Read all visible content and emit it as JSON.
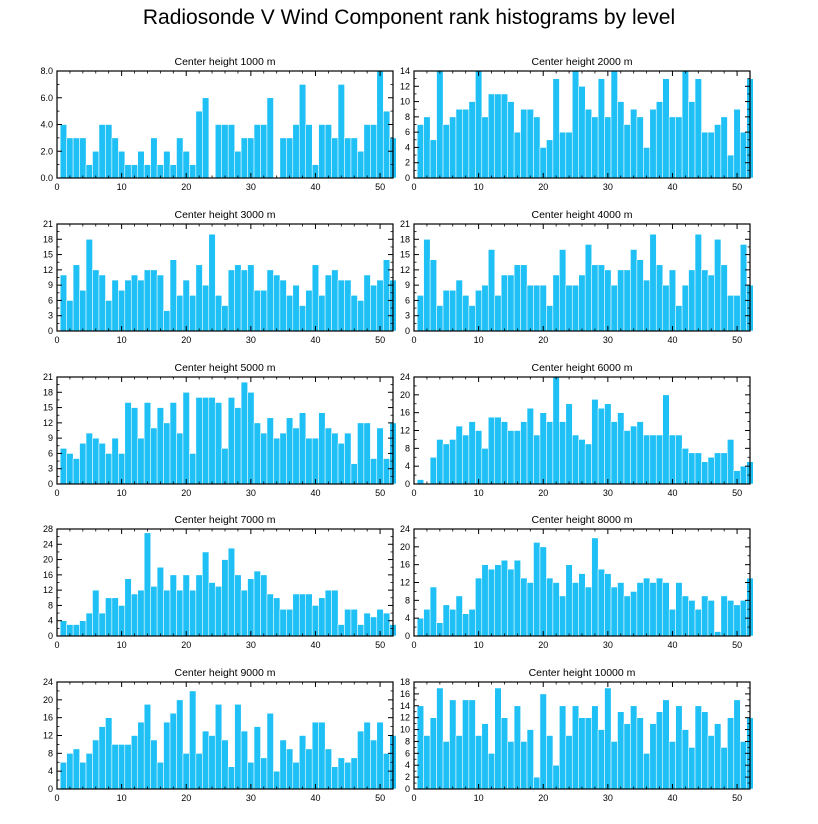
{
  "title": "Radiosonde V Wind Component rank histograms by level",
  "colors": {
    "bar": "#1ec0f5",
    "bar_stroke": "#ffffff",
    "axis": "#000000"
  },
  "chart_data": [
    {
      "type": "bar",
      "title": "Center height 1000 m",
      "xlim": [
        0,
        52
      ],
      "ylim": [
        0,
        8
      ],
      "xticks": [
        0,
        10,
        20,
        30,
        40,
        50
      ],
      "xtick_labels": [
        "0",
        "10",
        "20",
        "30",
        "40",
        "50"
      ],
      "yticks": [
        0,
        2,
        4,
        6,
        8
      ],
      "ytick_labels": [
        "0.0",
        "2.0",
        "4.0",
        "6.0",
        "8.0"
      ],
      "values": [
        4,
        3,
        3,
        3,
        1,
        2,
        4,
        4,
        3,
        2,
        1,
        1,
        2,
        1,
        3,
        1,
        2,
        1,
        3,
        2,
        1,
        5,
        6,
        0,
        4,
        4,
        4,
        2,
        3,
        3,
        4,
        4,
        6,
        0,
        3,
        3,
        4,
        7,
        4,
        1,
        4,
        4,
        3,
        7,
        3,
        3,
        2,
        4,
        4,
        8,
        5,
        3
      ]
    },
    {
      "type": "bar",
      "title": "Center height 2000 m",
      "xlim": [
        0,
        52
      ],
      "ylim": [
        0,
        14
      ],
      "xticks": [
        0,
        10,
        20,
        30,
        40,
        50
      ],
      "xtick_labels": [
        "0",
        "10",
        "20",
        "30",
        "40",
        "50"
      ],
      "yticks": [
        0,
        2,
        4,
        6,
        8,
        10,
        12,
        14
      ],
      "ytick_labels": [
        "0",
        "2",
        "4",
        "6",
        "8",
        "10",
        "12",
        "14"
      ],
      "values": [
        7,
        8,
        5,
        14,
        7,
        8,
        9,
        9,
        10,
        14,
        8,
        11,
        11,
        11,
        10,
        6,
        9,
        9,
        8,
        4,
        5,
        13,
        6,
        6,
        14,
        12,
        9,
        8,
        13,
        8,
        14,
        10,
        7,
        9,
        8,
        4,
        9,
        10,
        13,
        8,
        8,
        14,
        10,
        13,
        6,
        6,
        7,
        8,
        3,
        9,
        6,
        13
      ]
    },
    {
      "type": "bar",
      "title": "Center height 3000 m",
      "xlim": [
        0,
        52
      ],
      "ylim": [
        0,
        21
      ],
      "xticks": [
        0,
        10,
        20,
        30,
        40,
        50
      ],
      "xtick_labels": [
        "0",
        "10",
        "20",
        "30",
        "40",
        "50"
      ],
      "yticks": [
        0,
        3,
        6,
        9,
        12,
        15,
        18,
        21
      ],
      "ytick_labels": [
        "0",
        "3",
        "6",
        "9",
        "12",
        "15",
        "18",
        "21"
      ],
      "values": [
        11,
        6,
        13,
        8,
        18,
        12,
        11,
        6,
        10,
        8,
        10,
        11,
        10,
        12,
        12,
        11,
        4,
        14,
        7,
        10,
        7,
        13,
        9,
        19,
        7,
        5,
        12,
        13,
        12,
        13,
        8,
        8,
        12,
        11,
        10,
        7,
        9,
        5,
        8,
        13,
        7,
        11,
        12,
        10,
        10,
        7,
        6,
        11,
        9,
        10,
        14,
        10
      ]
    },
    {
      "type": "bar",
      "title": "Center height 4000 m",
      "xlim": [
        0,
        52
      ],
      "ylim": [
        0,
        21
      ],
      "xticks": [
        0,
        10,
        20,
        30,
        40,
        50
      ],
      "xtick_labels": [
        "0",
        "10",
        "20",
        "30",
        "40",
        "50"
      ],
      "yticks": [
        0,
        3,
        6,
        9,
        12,
        15,
        18,
        21
      ],
      "ytick_labels": [
        "0",
        "3",
        "6",
        "9",
        "12",
        "15",
        "18",
        "21"
      ],
      "values": [
        7,
        18,
        14,
        5,
        8,
        8,
        10,
        7,
        5,
        8,
        9,
        16,
        7,
        11,
        11,
        13,
        13,
        9,
        9,
        9,
        5,
        11,
        16,
        9,
        9,
        11,
        17,
        13,
        13,
        12,
        9,
        12,
        12,
        16,
        14,
        10,
        19,
        13,
        9,
        12,
        5,
        9,
        12,
        19,
        12,
        11,
        18,
        13,
        7,
        7,
        17,
        9
      ]
    },
    {
      "type": "bar",
      "title": "Center height 5000 m",
      "xlim": [
        0,
        52
      ],
      "ylim": [
        0,
        21
      ],
      "xticks": [
        0,
        10,
        20,
        30,
        40,
        50
      ],
      "xtick_labels": [
        "0",
        "10",
        "20",
        "30",
        "40",
        "50"
      ],
      "yticks": [
        0,
        3,
        6,
        9,
        12,
        15,
        18,
        21
      ],
      "ytick_labels": [
        "0",
        "3",
        "6",
        "9",
        "12",
        "15",
        "18",
        "21"
      ],
      "values": [
        7,
        6,
        5,
        8,
        10,
        9,
        8,
        6,
        9,
        6,
        16,
        15,
        9,
        16,
        11,
        15,
        12,
        16,
        10,
        18,
        6,
        17,
        17,
        17,
        16,
        7,
        17,
        15,
        20,
        18,
        12,
        10,
        13,
        9,
        10,
        13,
        11,
        14,
        9,
        9,
        14,
        11,
        10,
        8,
        10,
        4,
        12,
        12,
        5,
        11,
        5,
        12
      ]
    },
    {
      "type": "bar",
      "title": "Center height 6000 m",
      "xlim": [
        0,
        52
      ],
      "ylim": [
        0,
        24
      ],
      "xticks": [
        0,
        10,
        20,
        30,
        40,
        50
      ],
      "xtick_labels": [
        "0",
        "10",
        "20",
        "30",
        "40",
        "50"
      ],
      "yticks": [
        0,
        4,
        8,
        12,
        16,
        20,
        24
      ],
      "ytick_labels": [
        "0",
        "4",
        "8",
        "12",
        "16",
        "20",
        "24"
      ],
      "values": [
        1,
        0,
        6,
        10,
        9,
        10,
        13,
        11,
        14,
        12,
        8,
        15,
        15,
        14,
        12,
        12,
        14,
        17,
        11,
        16,
        14,
        24,
        14,
        18,
        11,
        10,
        9,
        19,
        17,
        18,
        14,
        16,
        12,
        13,
        14,
        11,
        11,
        11,
        20,
        11,
        11,
        8,
        7,
        7,
        5,
        6,
        7,
        7,
        10,
        3,
        4,
        5
      ]
    },
    {
      "type": "bar",
      "title": "Center height 7000 m",
      "xlim": [
        0,
        52
      ],
      "ylim": [
        0,
        28
      ],
      "xticks": [
        0,
        10,
        20,
        30,
        40,
        50
      ],
      "xtick_labels": [
        "0",
        "10",
        "20",
        "30",
        "40",
        "50"
      ],
      "yticks": [
        0,
        4,
        8,
        12,
        16,
        20,
        24,
        28
      ],
      "ytick_labels": [
        "0",
        "4",
        "8",
        "12",
        "16",
        "20",
        "24",
        "28"
      ],
      "values": [
        4,
        3,
        3,
        4,
        6,
        12,
        6,
        10,
        10,
        8,
        15,
        11,
        12,
        27,
        13,
        18,
        12,
        16,
        12,
        16,
        12,
        16,
        22,
        14,
        13,
        20,
        23,
        16,
        12,
        15,
        17,
        16,
        11,
        10,
        7,
        7,
        11,
        11,
        11,
        8,
        10,
        12,
        12,
        3,
        7,
        7,
        3,
        6,
        5,
        7,
        6,
        3
      ]
    },
    {
      "type": "bar",
      "title": "Center height 8000 m",
      "xlim": [
        0,
        52
      ],
      "ylim": [
        0,
        24
      ],
      "xticks": [
        0,
        10,
        20,
        30,
        40,
        50
      ],
      "xtick_labels": [
        "0",
        "10",
        "20",
        "30",
        "40",
        "50"
      ],
      "yticks": [
        0,
        4,
        8,
        12,
        16,
        20,
        24
      ],
      "ytick_labels": [
        "0",
        "4",
        "8",
        "12",
        "16",
        "20",
        "24"
      ],
      "values": [
        4,
        6,
        11,
        3,
        7,
        6,
        9,
        5,
        6,
        13,
        16,
        15,
        16,
        17,
        15,
        17,
        13,
        12,
        21,
        20,
        13,
        12,
        9,
        16,
        12,
        14,
        11,
        22,
        15,
        14,
        11,
        12,
        9,
        10,
        12,
        13,
        12,
        13,
        12,
        6,
        12,
        9,
        8,
        6,
        9,
        8,
        1,
        9,
        8,
        7,
        8,
        13
      ]
    },
    {
      "type": "bar",
      "title": "Center height 9000 m",
      "xlim": [
        0,
        52
      ],
      "ylim": [
        0,
        24
      ],
      "xticks": [
        0,
        10,
        20,
        30,
        40,
        50
      ],
      "xtick_labels": [
        "0",
        "10",
        "20",
        "30",
        "40",
        "50"
      ],
      "yticks": [
        0,
        4,
        8,
        12,
        16,
        20,
        24
      ],
      "ytick_labels": [
        "0",
        "4",
        "8",
        "12",
        "16",
        "20",
        "24"
      ],
      "values": [
        6,
        8,
        9,
        6,
        8,
        11,
        14,
        16,
        10,
        10,
        10,
        12,
        15,
        19,
        11,
        6,
        15,
        17,
        20,
        8,
        22,
        8,
        13,
        12,
        19,
        11,
        5,
        19,
        13,
        6,
        14,
        7,
        17,
        4,
        11,
        9,
        6,
        12,
        9,
        15,
        15,
        9,
        5,
        7,
        6,
        7,
        13,
        15,
        11,
        15,
        8,
        12
      ]
    },
    {
      "type": "bar",
      "title": "Center height 10000 m",
      "xlim": [
        0,
        52
      ],
      "ylim": [
        0,
        18
      ],
      "xticks": [
        0,
        10,
        20,
        30,
        40,
        50
      ],
      "xtick_labels": [
        "0",
        "10",
        "20",
        "30",
        "40",
        "50"
      ],
      "yticks": [
        0,
        2,
        4,
        6,
        8,
        10,
        12,
        14,
        16,
        18
      ],
      "ytick_labels": [
        "0",
        "2",
        "4",
        "6",
        "8",
        "10",
        "12",
        "14",
        "16",
        "18"
      ],
      "values": [
        14,
        9,
        12,
        17,
        8,
        15,
        9,
        15,
        15,
        9,
        11,
        6,
        17,
        12,
        8,
        14,
        8,
        10,
        2,
        16,
        9,
        4,
        14,
        9,
        14,
        12,
        12,
        14,
        10,
        17,
        8,
        13,
        11,
        14,
        12,
        6,
        11,
        13,
        15,
        8,
        14,
        10,
        7,
        14,
        13,
        9,
        11,
        7,
        12,
        15,
        8,
        12
      ]
    }
  ]
}
